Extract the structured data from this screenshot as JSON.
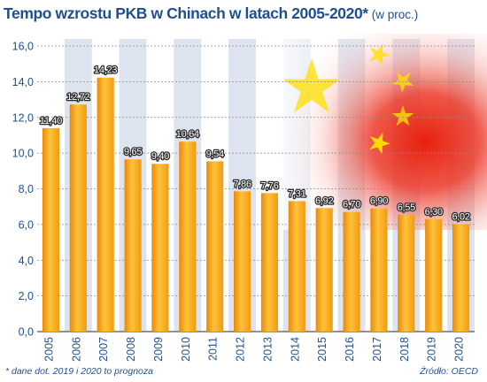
{
  "chart_data": {
    "type": "bar",
    "title": "Tempo wzrostu PKB w Chinach w latach 2005-2020*",
    "subtitle": "(w proc.)",
    "categories": [
      "2005",
      "2006",
      "2007",
      "2008",
      "2009",
      "2010",
      "2011",
      "2012",
      "2013",
      "2014",
      "2015",
      "2016",
      "2017",
      "2018",
      "2019",
      "2020"
    ],
    "values": [
      11.4,
      12.72,
      14.23,
      9.65,
      9.4,
      10.64,
      9.54,
      7.86,
      7.76,
      7.31,
      6.92,
      6.7,
      6.9,
      6.55,
      6.3,
      6.02
    ],
    "value_labels": [
      "11,40",
      "12,72",
      "14,23",
      "9,65",
      "9,40",
      "10,64",
      "9,54",
      "7,86",
      "7,76",
      "7,31",
      "6,92",
      "6,70",
      "6,90",
      "6,55",
      "6,30",
      "6,02"
    ],
    "y_ticks": [
      "0,0",
      "2,0",
      "4,0",
      "6,0",
      "8,0",
      "10,0",
      "12,0",
      "14,0",
      "16,0"
    ],
    "ylim": [
      0,
      16
    ],
    "grid": "horizontal",
    "xlabel": "",
    "ylabel": "",
    "bar_color": "#f4a11a",
    "background_decoration": "flag of China",
    "footnote": "* dane dot. 2019 i 2020 to prognoza",
    "source": "Źródło: OECD"
  },
  "colors": {
    "title": "#1f4f8f",
    "band": "#dde4ef",
    "flag_red": "#de2910",
    "flag_yellow": "#ffde00"
  }
}
